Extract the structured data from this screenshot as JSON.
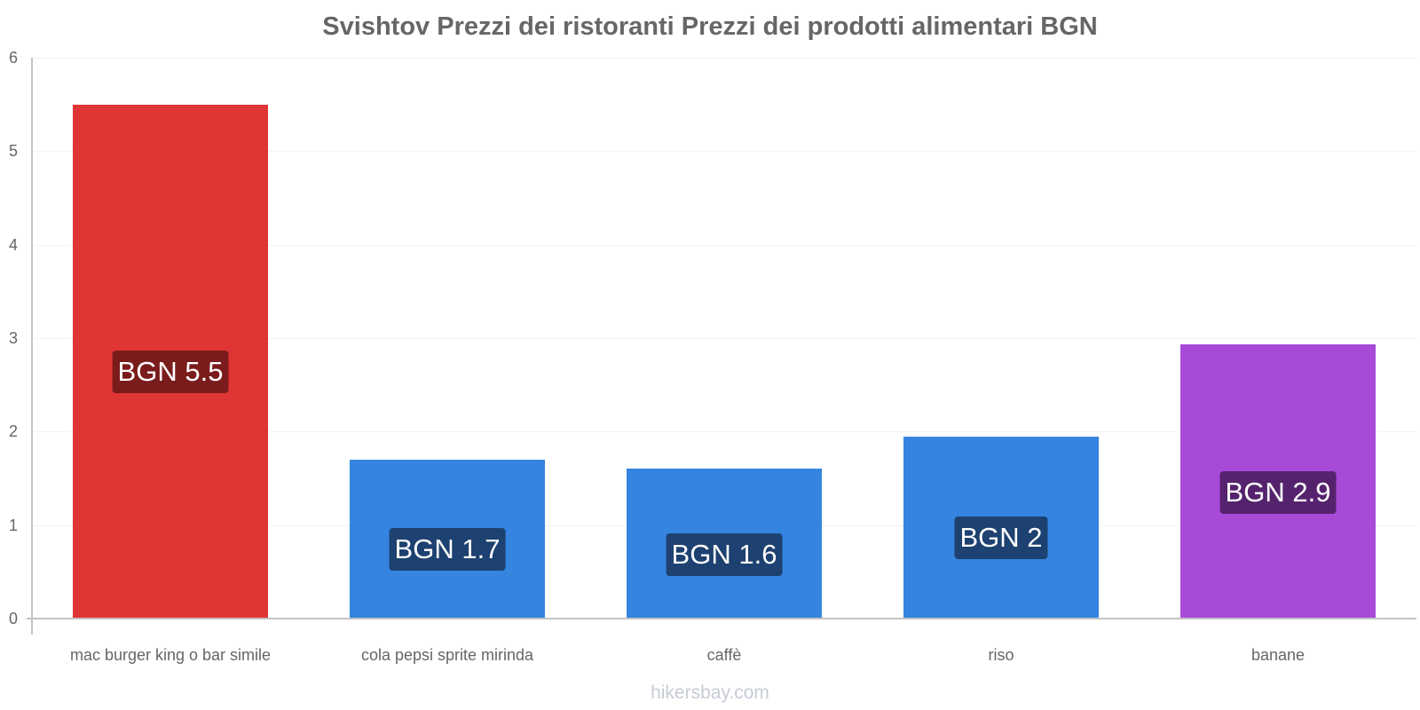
{
  "chart_data": {
    "type": "bar",
    "title": "Svishtov Prezzi dei ristoranti Prezzi dei prodotti alimentari BGN",
    "xlabel": "",
    "ylabel": "",
    "ylim": [
      0,
      6
    ],
    "yticks": [
      "0",
      "1",
      "2",
      "3",
      "4",
      "5",
      "6"
    ],
    "grid": true,
    "legend": "none",
    "categories": [
      "mac burger king o bar simile",
      "cola pepsi sprite mirinda",
      "caffè",
      "riso",
      "banane"
    ],
    "values": [
      5.5,
      1.7,
      1.6,
      1.95,
      2.93
    ],
    "data_labels": [
      "BGN 5.5",
      "BGN 1.7",
      "BGN 1.6",
      "BGN 2",
      "BGN 2.9"
    ],
    "bar_colors": [
      "#e03535",
      "#3584df",
      "#3584df",
      "#3584df",
      "#a84ad8"
    ],
    "label_colors": [
      "#7a1c1c",
      "#1d4170",
      "#1d4170",
      "#1d4170",
      "#55236d"
    ]
  },
  "watermark": "hikersbay.com"
}
